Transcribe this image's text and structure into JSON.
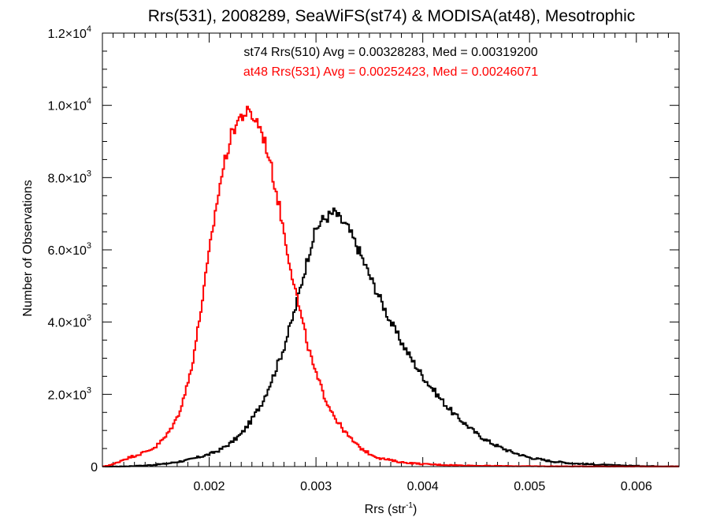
{
  "chart_data": {
    "type": "line",
    "title": "Rrs(531), 2008289, SeaWiFS(st74) & MODISA(at48), Mesotrophic",
    "xlabel_base": "Rrs (str",
    "xlabel_sup": "-1",
    "xlabel_close": ")",
    "ylabel": "Number of Observations",
    "xlim": [
      0.001,
      0.0064
    ],
    "ylim": [
      0,
      12000
    ],
    "x_ticks": [
      {
        "value": 0.002,
        "label": "0.002"
      },
      {
        "value": 0.003,
        "label": "0.003"
      },
      {
        "value": 0.004,
        "label": "0.004"
      },
      {
        "value": 0.005,
        "label": "0.005"
      },
      {
        "value": 0.006,
        "label": "0.006"
      }
    ],
    "y_ticks": [
      {
        "value": 0,
        "label": "0",
        "sup": ""
      },
      {
        "value": 2000,
        "label": "2.0×10",
        "sup": "3"
      },
      {
        "value": 4000,
        "label": "4.0×10",
        "sup": "3"
      },
      {
        "value": 6000,
        "label": "6.0×10",
        "sup": "3"
      },
      {
        "value": 8000,
        "label": "8.0×10",
        "sup": "3"
      },
      {
        "value": 10000,
        "label": "1.0×10",
        "sup": "4"
      },
      {
        "value": 12000,
        "label": "1.2×10",
        "sup": "4"
      }
    ],
    "annotations": [
      {
        "text": "st74 Rrs(510) Avg = 0.00328283, Med = 0.00319200",
        "color": "#000000"
      },
      {
        "text": "at48 Rrs(531) Avg = 0.00252423, Med = 0.00246071",
        "color": "#ff0000"
      }
    ],
    "series": [
      {
        "color": "#000000",
        "x": [
          0.001,
          0.0012,
          0.0014,
          0.0016,
          0.0018,
          0.002,
          0.0021,
          0.0022,
          0.0023,
          0.0024,
          0.0025,
          0.0026,
          0.0027,
          0.0028,
          0.00285,
          0.0029,
          0.00295,
          0.003,
          0.00305,
          0.0031,
          0.00315,
          0.00318,
          0.00322,
          0.00326,
          0.0033,
          0.00335,
          0.0034,
          0.00345,
          0.0035,
          0.0036,
          0.0037,
          0.0038,
          0.0039,
          0.004,
          0.0041,
          0.0042,
          0.0043,
          0.0044,
          0.0045,
          0.0046,
          0.0047,
          0.0048,
          0.0049,
          0.005,
          0.0052,
          0.0054,
          0.0056,
          0.0058,
          0.006,
          0.0062,
          0.0064
        ],
        "y": [
          0,
          5,
          30,
          80,
          180,
          340,
          460,
          650,
          900,
          1300,
          1800,
          2500,
          3300,
          4300,
          4900,
          5500,
          6100,
          6550,
          6800,
          6900,
          7000,
          7050,
          6850,
          6750,
          6600,
          6300,
          6000,
          5650,
          5300,
          4650,
          4000,
          3450,
          2950,
          2500,
          2120,
          1760,
          1430,
          1180,
          920,
          720,
          570,
          440,
          340,
          250,
          150,
          90,
          60,
          35,
          20,
          10,
          5
        ]
      },
      {
        "color": "#ff0000",
        "x": [
          0.001,
          0.0011,
          0.0012,
          0.0013,
          0.0014,
          0.0015,
          0.0016,
          0.0017,
          0.00175,
          0.0018,
          0.00185,
          0.0019,
          0.00195,
          0.002,
          0.00205,
          0.0021,
          0.00215,
          0.0022,
          0.00225,
          0.0023,
          0.00235,
          0.00238,
          0.00242,
          0.00246,
          0.0025,
          0.00255,
          0.0026,
          0.00265,
          0.0027,
          0.00275,
          0.0028,
          0.00285,
          0.0029,
          0.00295,
          0.003,
          0.0031,
          0.0032,
          0.0033,
          0.0034,
          0.0035,
          0.0036,
          0.0038,
          0.004,
          0.0042,
          0.0044,
          0.0046,
          0.0048,
          0.005,
          0.0055,
          0.006,
          0.0064
        ],
        "y": [
          0,
          60,
          200,
          300,
          400,
          550,
          850,
          1350,
          1800,
          2300,
          3000,
          3900,
          4900,
          5900,
          6900,
          7800,
          8500,
          9100,
          9500,
          9700,
          9800,
          9750,
          9650,
          9500,
          9200,
          8700,
          8000,
          7300,
          6500,
          5700,
          5000,
          4300,
          3650,
          3050,
          2550,
          1800,
          1250,
          850,
          550,
          360,
          230,
          120,
          70,
          45,
          30,
          20,
          15,
          10,
          5,
          3,
          2
        ]
      }
    ]
  }
}
